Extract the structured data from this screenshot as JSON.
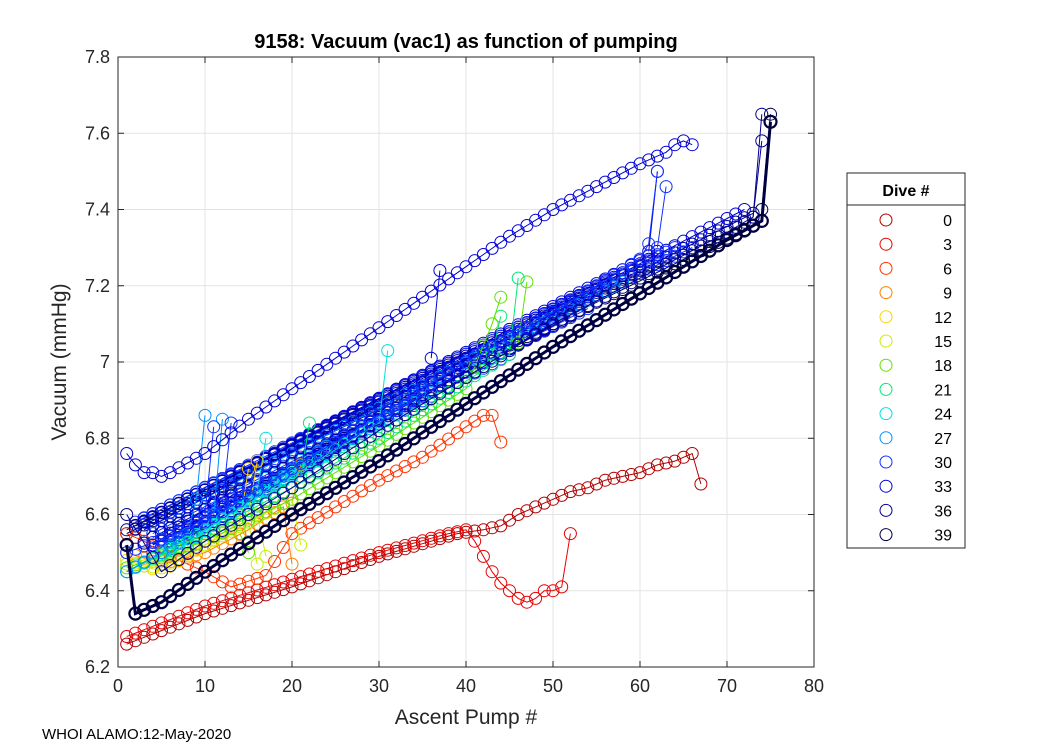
{
  "chart_data": {
    "type": "scatter",
    "title": "9158: Vacuum (vac1) as function of pumping",
    "xlabel": "Ascent Pump #",
    "ylabel": "Vacuum (mmHg)",
    "xlim": [
      0,
      80
    ],
    "ylim": [
      6.2,
      7.8
    ],
    "xticks": [
      0,
      10,
      20,
      30,
      40,
      50,
      60,
      70,
      80
    ],
    "yticks": [
      6.2,
      6.4,
      6.6,
      6.8,
      7,
      7.2,
      7.4,
      7.6,
      7.8
    ],
    "ytick_labels": [
      "6.2",
      "6.4",
      "6.6",
      "6.8",
      "7",
      "7.2",
      "7.4",
      "7.6",
      "7.8"
    ],
    "grid": true,
    "marker": "open-circle",
    "legend": {
      "title": "Dive #",
      "position": "outside-right",
      "entries": [
        "0",
        "3",
        "6",
        "9",
        "12",
        "15",
        "18",
        "21",
        "24",
        "27",
        "30",
        "33",
        "36",
        "39"
      ],
      "colors": [
        "#b00000",
        "#e60000",
        "#ff3300",
        "#ff7f00",
        "#ffd000",
        "#c8f000",
        "#60e000",
        "#00e878",
        "#00e0e0",
        "#0090ff",
        "#1030ff",
        "#0000d8",
        "#000090",
        "#000040"
      ]
    },
    "series": [
      {
        "name": "0",
        "color": "#b00000",
        "x": [
          1,
          10,
          20,
          30,
          36,
          39,
          42,
          44,
          46,
          48,
          50,
          52,
          54,
          56,
          58,
          60,
          62,
          64,
          66,
          67
        ],
        "y": [
          6.26,
          6.34,
          6.41,
          6.49,
          6.53,
          6.55,
          6.56,
          6.57,
          6.6,
          6.62,
          6.64,
          6.66,
          6.67,
          6.69,
          6.7,
          6.71,
          6.73,
          6.74,
          6.76,
          6.68
        ]
      },
      {
        "name": "3",
        "color": "#e60000",
        "x": [
          1,
          10,
          20,
          30,
          38,
          40,
          41,
          42,
          43,
          44,
          45,
          46,
          47,
          48,
          49,
          50,
          51,
          52
        ],
        "y": [
          6.28,
          6.36,
          6.43,
          6.5,
          6.55,
          6.56,
          6.53,
          6.49,
          6.45,
          6.42,
          6.4,
          6.38,
          6.37,
          6.38,
          6.4,
          6.4,
          6.41,
          6.55
        ]
      },
      {
        "name": "6",
        "color": "#ff3300",
        "x": [
          1,
          3,
          5,
          10,
          13,
          17,
          20,
          25,
          30,
          35,
          40,
          42,
          43,
          44
        ],
        "y": [
          6.55,
          6.53,
          6.5,
          6.45,
          6.41,
          6.44,
          6.55,
          6.62,
          6.69,
          6.75,
          6.83,
          6.86,
          6.86,
          6.79
        ]
      },
      {
        "name": "9",
        "color": "#ff7f00",
        "x": [
          1,
          5,
          10,
          15,
          19,
          20
        ],
        "y": [
          6.5,
          6.47,
          6.5,
          6.56,
          6.62,
          6.47
        ]
      },
      {
        "name": "12",
        "color": "#ffd000",
        "x": [
          1,
          5,
          10,
          14,
          15
        ],
        "y": [
          6.48,
          6.45,
          6.52,
          6.58,
          6.72
        ]
      },
      {
        "name": "15",
        "color": "#c8f000",
        "x": [
          1,
          5,
          10,
          15,
          20,
          21
        ],
        "y": [
          6.47,
          6.46,
          6.52,
          6.58,
          6.64,
          6.52
        ]
      },
      {
        "name": "18",
        "color": "#60e000",
        "x": [
          1,
          10,
          20,
          30,
          40,
          43,
          44
        ],
        "y": [
          6.46,
          6.53,
          6.64,
          6.78,
          6.93,
          7.1,
          7.17
        ]
      },
      {
        "name": "21",
        "color": "#00e878",
        "x": [
          1,
          10,
          20,
          30,
          40,
          45,
          46
        ],
        "y": [
          6.45,
          6.55,
          6.67,
          6.8,
          6.95,
          7.02,
          7.22
        ]
      },
      {
        "name": "24",
        "color": "#00e0e0",
        "x": [
          1,
          10,
          20,
          30,
          31
        ],
        "y": [
          6.45,
          6.56,
          6.7,
          6.84,
          7.03
        ]
      },
      {
        "name": "27",
        "color": "#0090ff",
        "x": [
          1,
          5,
          8,
          9,
          10
        ],
        "y": [
          6.45,
          6.5,
          6.55,
          6.64,
          6.86
        ]
      },
      {
        "name": "30",
        "color": "#1030ff",
        "x": [
          1,
          10,
          20,
          30,
          40,
          50,
          60,
          61,
          62
        ],
        "y": [
          6.5,
          6.58,
          6.72,
          6.86,
          7.0,
          7.13,
          7.27,
          7.31,
          7.5
        ]
      },
      {
        "name": "33",
        "color": "#0000d8",
        "x": [
          1,
          2,
          3,
          4,
          5,
          6,
          10,
          15,
          20,
          25,
          30,
          35,
          40,
          45,
          50,
          55,
          60,
          63,
          64,
          65,
          66
        ],
        "y": [
          6.76,
          6.73,
          6.71,
          6.71,
          6.7,
          6.71,
          6.76,
          6.85,
          6.93,
          7.01,
          7.09,
          7.17,
          7.25,
          7.33,
          7.4,
          7.46,
          7.52,
          7.55,
          7.57,
          7.58,
          7.57
        ]
      },
      {
        "name": "36",
        "color": "#000090",
        "x": [
          1,
          5,
          10,
          20,
          30,
          40,
          50,
          60,
          70,
          73,
          74
        ],
        "y": [
          6.6,
          6.45,
          6.53,
          6.67,
          6.82,
          6.96,
          7.1,
          7.22,
          7.34,
          7.38,
          7.65
        ]
      },
      {
        "name": "39",
        "color": "#000040",
        "x": [
          1,
          2,
          3,
          5,
          10,
          20,
          30,
          40,
          50,
          60,
          70,
          74,
          75
        ],
        "y": [
          6.52,
          6.34,
          6.35,
          6.37,
          6.45,
          6.6,
          6.74,
          6.89,
          7.04,
          7.18,
          7.32,
          7.37,
          7.63
        ]
      }
    ],
    "extra_series": [
      {
        "color": "#000040",
        "x": [
          1,
          74
        ],
        "y": [
          6.55,
          7.37
        ]
      },
      {
        "color": "#000090",
        "x": [
          1,
          73
        ],
        "y": [
          6.56,
          7.39
        ]
      },
      {
        "color": "#0000d8",
        "x": [
          2,
          72
        ],
        "y": [
          6.57,
          7.4
        ]
      },
      {
        "color": "#1030ff",
        "x": [
          2,
          66
        ],
        "y": [
          6.58,
          7.3
        ]
      },
      {
        "color": "#1030ff",
        "x": [
          3,
          64
        ],
        "y": [
          6.59,
          7.3
        ]
      },
      {
        "color": "#0000d8",
        "x": [
          3,
          62
        ],
        "y": [
          6.58,
          7.29
        ]
      },
      {
        "color": "#000090",
        "x": [
          2,
          60
        ],
        "y": [
          6.57,
          7.25
        ]
      },
      {
        "color": "#0090ff",
        "x": [
          3,
          58
        ],
        "y": [
          6.56,
          7.21
        ]
      },
      {
        "color": "#0000d8",
        "x": [
          3,
          56
        ],
        "y": [
          6.56,
          7.2
        ]
      },
      {
        "color": "#1030ff",
        "x": [
          4,
          54
        ],
        "y": [
          6.55,
          7.14
        ]
      },
      {
        "color": "#000090",
        "x": [
          4,
          52
        ],
        "y": [
          6.54,
          7.12
        ]
      },
      {
        "color": "#0000d8",
        "x": [
          5,
          50
        ],
        "y": [
          6.53,
          7.1
        ]
      },
      {
        "color": "#1030ff",
        "x": [
          4,
          45
        ],
        "y": [
          6.52,
          7.02
        ]
      },
      {
        "color": "#0000d8",
        "x": [
          4,
          40
        ],
        "y": [
          6.5,
          6.98
        ]
      },
      {
        "color": "#0090ff",
        "x": [
          5,
          36
        ],
        "y": [
          6.5,
          6.92
        ]
      },
      {
        "color": "#1030ff",
        "x": [
          5,
          34
        ],
        "y": [
          6.5,
          6.9
        ]
      },
      {
        "color": "#0000d8",
        "x": [
          6,
          30
        ],
        "y": [
          6.51,
          6.85
        ]
      },
      {
        "color": "#000090",
        "x": [
          6,
          26
        ],
        "y": [
          6.52,
          6.8
        ]
      },
      {
        "color": "#0090ff",
        "x": [
          7,
          24
        ],
        "y": [
          6.51,
          6.78
        ]
      },
      {
        "color": "#00e0e0",
        "x": [
          5,
          22
        ],
        "y": [
          6.48,
          6.74
        ]
      },
      {
        "color": "#1030ff",
        "x": [
          4,
          17
        ],
        "y": [
          6.5,
          6.7
        ]
      },
      {
        "color": "#0000d8",
        "x": [
          4,
          13
        ],
        "y": [
          6.52,
          6.66
        ]
      }
    ],
    "spikes": [
      {
        "color": "#0000d8",
        "x": [
          36,
          37
        ],
        "y": [
          7.01,
          7.24
        ]
      },
      {
        "color": "#1030ff",
        "x": [
          62,
          63
        ],
        "y": [
          7.3,
          7.46
        ]
      },
      {
        "color": "#0000d8",
        "x": [
          61,
          62
        ],
        "y": [
          7.29,
          7.5
        ]
      },
      {
        "color": "#0090ff",
        "x": [
          11,
          12
        ],
        "y": [
          6.6,
          6.85
        ]
      },
      {
        "color": "#1030ff",
        "x": [
          12,
          13
        ],
        "y": [
          6.63,
          6.84
        ]
      },
      {
        "color": "#1030ff",
        "x": [
          10,
          11
        ],
        "y": [
          6.6,
          6.83
        ]
      },
      {
        "color": "#00e0e0",
        "x": [
          16,
          17
        ],
        "y": [
          6.66,
          6.8
        ]
      },
      {
        "color": "#00e878",
        "x": [
          21,
          22
        ],
        "y": [
          6.7,
          6.84
        ]
      },
      {
        "color": "#ffd000",
        "x": [
          15,
          16
        ],
        "y": [
          6.6,
          6.74
        ]
      },
      {
        "color": "#ff7f00",
        "x": [
          20,
          21
        ],
        "y": [
          6.63,
          6.73
        ]
      },
      {
        "color": "#c8f000",
        "x": [
          15,
          16
        ],
        "y": [
          6.58,
          6.47
        ]
      },
      {
        "color": "#c8f000",
        "x": [
          16,
          17
        ],
        "y": [
          6.6,
          6.49
        ]
      },
      {
        "color": "#60e000",
        "x": [
          14,
          15
        ],
        "y": [
          6.55,
          6.5
        ]
      },
      {
        "color": "#60e000",
        "x": [
          46,
          47
        ],
        "y": [
          7.05,
          7.21
        ]
      },
      {
        "color": "#00e878",
        "x": [
          43,
          44
        ],
        "y": [
          7.02,
          7.12
        ]
      },
      {
        "color": "#000090",
        "x": [
          73,
          74
        ],
        "y": [
          7.38,
          7.58
        ]
      },
      {
        "color": "#000040",
        "x": [
          74,
          75
        ],
        "y": [
          7.4,
          7.65
        ]
      }
    ]
  },
  "footer": {
    "text": "WHOI ALAMO:12-May-2020"
  }
}
